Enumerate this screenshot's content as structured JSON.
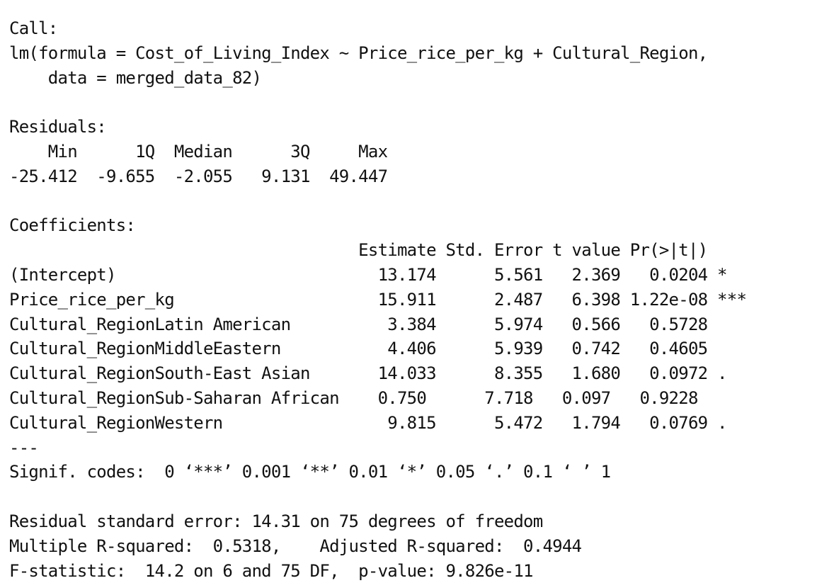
{
  "call": {
    "header": "Call:",
    "line1": "lm(formula = Cost_of_Living_Index ~ Price_rice_per_kg + Cultural_Region,",
    "line2": "    data = merged_data_82)"
  },
  "residuals": {
    "header": "Residuals:",
    "labels": [
      "Min",
      "1Q",
      "Median",
      "3Q",
      "Max"
    ],
    "values": [
      "-25.412",
      "-9.655",
      "-2.055",
      "9.131",
      "49.447"
    ],
    "labels_line": "    Min      1Q  Median      3Q     Max ",
    "values_line": "-25.412  -9.655  -2.055   9.131  49.447 "
  },
  "coefficients": {
    "header": "Coefficients:",
    "columns": [
      "Estimate",
      "Std. Error",
      "t value",
      "Pr(>|t|)"
    ],
    "header_line": "                                    Estimate Std. Error t value Pr(>|t|)    ",
    "rows": [
      {
        "term": "(Intercept)",
        "estimate": "13.174",
        "std_error": "5.561",
        "t_value": "2.369",
        "p_value": "0.0204",
        "signif": "*",
        "line": "(Intercept)                           13.174      5.561   2.369   0.0204 *  "
      },
      {
        "term": "Price_rice_per_kg",
        "estimate": "15.911",
        "std_error": "2.487",
        "t_value": "6.398",
        "p_value": "1.22e-08",
        "signif": "***",
        "line": "Price_rice_per_kg                     15.911      2.487   6.398 1.22e-08 ***"
      },
      {
        "term": "Cultural_RegionLatin American",
        "estimate": "3.384",
        "std_error": "5.974",
        "t_value": "0.566",
        "p_value": "0.5728",
        "signif": "",
        "line": "Cultural_RegionLatin American          3.384      5.974   0.566   0.5728    "
      },
      {
        "term": "Cultural_RegionMiddleEastern",
        "estimate": "4.406",
        "std_error": "5.939",
        "t_value": "0.742",
        "p_value": "0.4605",
        "signif": "",
        "line": "Cultural_RegionMiddleEastern           4.406      5.939   0.742   0.4605    "
      },
      {
        "term": "Cultural_RegionSouth-East Asian",
        "estimate": "14.033",
        "std_error": "8.355",
        "t_value": "1.680",
        "p_value": "0.0972",
        "signif": ".",
        "line": "Cultural_RegionSouth-East Asian       14.033      8.355   1.680   0.0972 .  "
      },
      {
        "term": "Cultural_RegionSub-Saharan African",
        "estimate": "0.750",
        "std_error": "7.718",
        "t_value": "0.097",
        "p_value": "0.9228",
        "signif": "",
        "line": "Cultural_RegionSub-Saharan African    0.750      7.718   0.097   0.9228    "
      },
      {
        "term": "Cultural_RegionWestern",
        "estimate": "9.815",
        "std_error": "5.472",
        "t_value": "1.794",
        "p_value": "0.0769",
        "signif": ".",
        "line": "Cultural_RegionWestern                 9.815      5.472   1.794   0.0769 .  "
      }
    ]
  },
  "separator": "---",
  "signif_codes": "Signif. codes:  0 ‘***’ 0.001 ‘**’ 0.01 ‘*’ 0.05 ‘.’ 0.1 ‘ ’ 1",
  "summary": {
    "residual_se": "Residual standard error: 14.31 on 75 degrees of freedom",
    "r_squared": "Multiple R-squared:  0.5318,\tAdjusted R-squared:  0.4944 ",
    "f_statistic": "F-statistic:  14.2 on 6 and 75 DF,  p-value: 9.826e-11"
  }
}
